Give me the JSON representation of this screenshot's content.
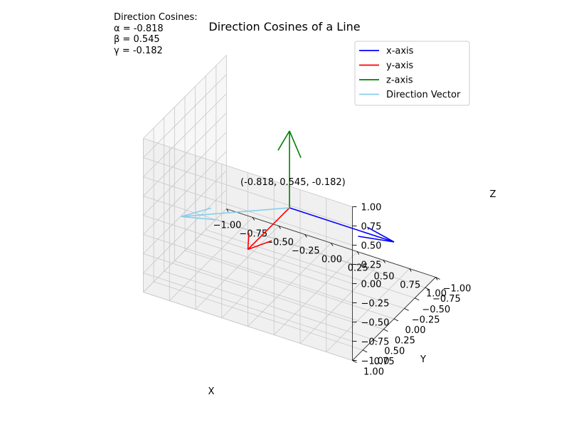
{
  "chart_data": {
    "type": "line",
    "projection": "3d",
    "title": "Direction Cosines of a Line",
    "xlabel": "X",
    "ylabel": "Y",
    "zlabel": "Z",
    "xlim": [
      -1.0,
      1.0
    ],
    "ylim": [
      -1.0,
      1.0
    ],
    "zlim": [
      -1.0,
      1.0
    ],
    "x_ticks": [
      "−1.00",
      "−0.75",
      "−0.50",
      "−0.25",
      "0.00",
      "0.25",
      "0.50",
      "0.75",
      "1.00"
    ],
    "y_ticks": [
      "−1.00",
      "−0.75",
      "−0.50",
      "−0.25",
      "0.00",
      "0.25",
      "0.50",
      "0.75",
      "1.00"
    ],
    "z_ticks": [
      "−1.00",
      "−0.75",
      "−0.50",
      "−0.25",
      "0.00",
      "0.25",
      "0.50",
      "0.75",
      "1.00"
    ],
    "grid": true,
    "legend_position": "upper-right",
    "series": [
      {
        "name": "x-axis",
        "color": "#0000ff",
        "start": [
          0,
          0,
          0
        ],
        "vector": [
          1,
          0,
          0
        ]
      },
      {
        "name": "y-axis",
        "color": "#ff0000",
        "start": [
          0,
          0,
          0
        ],
        "vector": [
          0,
          1,
          0
        ]
      },
      {
        "name": "z-axis",
        "color": "#008000",
        "start": [
          0,
          0,
          0
        ],
        "vector": [
          0,
          0,
          1
        ]
      },
      {
        "name": "Direction Vector",
        "color": "#87ceeb",
        "start": [
          0,
          0,
          0
        ],
        "vector": [
          -0.818,
          0.545,
          -0.182
        ]
      }
    ],
    "point_label": {
      "text": "(-0.818, 0.545, -0.182)",
      "at": [
        -0.818,
        0.545,
        -0.182
      ]
    },
    "info_lines": [
      "Direction Cosines:",
      "α = -0.818",
      "β = 0.545",
      "γ = -0.182"
    ]
  }
}
